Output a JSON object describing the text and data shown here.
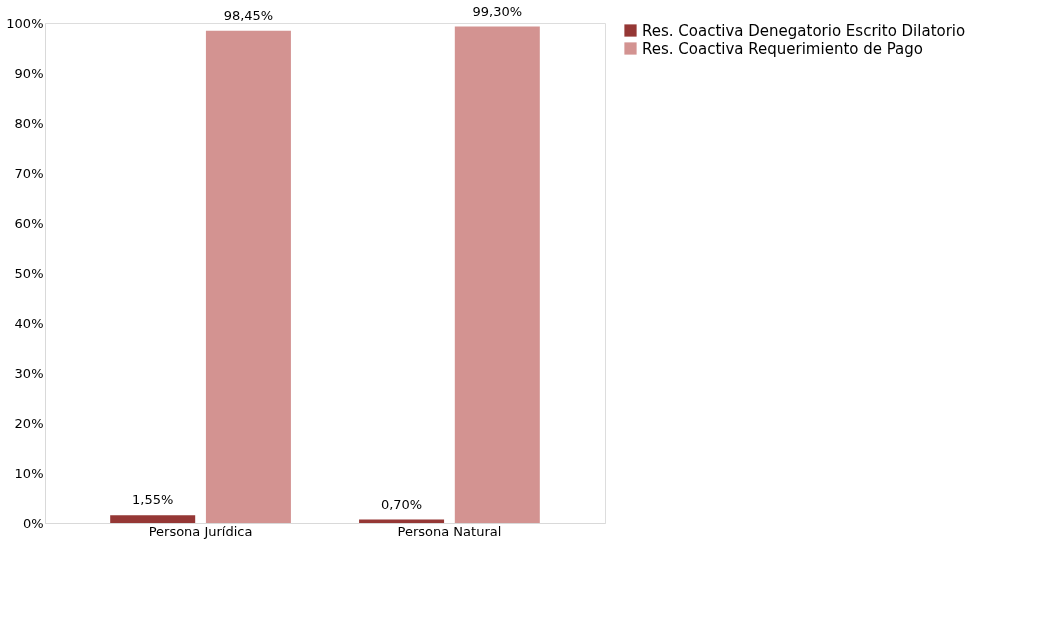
{
  "chart_data": {
    "type": "bar",
    "categories": [
      "Persona Jurídica",
      "Persona Natural"
    ],
    "series": [
      {
        "name": "Res. Coactiva Denegatorio Escrito Dilatorio",
        "color": "#953735",
        "values": [
          1.55,
          0.7
        ],
        "value_labels": [
          "1,55%",
          "0,70%"
        ]
      },
      {
        "name": "Res. Coactiva Requerimiento de Pago",
        "color": "#d39391",
        "values": [
          98.45,
          99.3
        ],
        "value_labels": [
          "98,45%",
          "99,30%"
        ]
      }
    ],
    "ylim": [
      0,
      100
    ],
    "yticks": [
      {
        "value": 0,
        "label": "0%"
      },
      {
        "value": 10,
        "label": "10%"
      },
      {
        "value": 20,
        "label": "20%"
      },
      {
        "value": 30,
        "label": "30%"
      },
      {
        "value": 40,
        "label": "40%"
      },
      {
        "value": 50,
        "label": "50%"
      },
      {
        "value": 60,
        "label": "60%"
      },
      {
        "value": 70,
        "label": "70%"
      },
      {
        "value": 80,
        "label": "80%"
      },
      {
        "value": 90,
        "label": "90%"
      },
      {
        "value": 100,
        "label": "100%"
      }
    ],
    "grid": false,
    "legend": "right"
  }
}
